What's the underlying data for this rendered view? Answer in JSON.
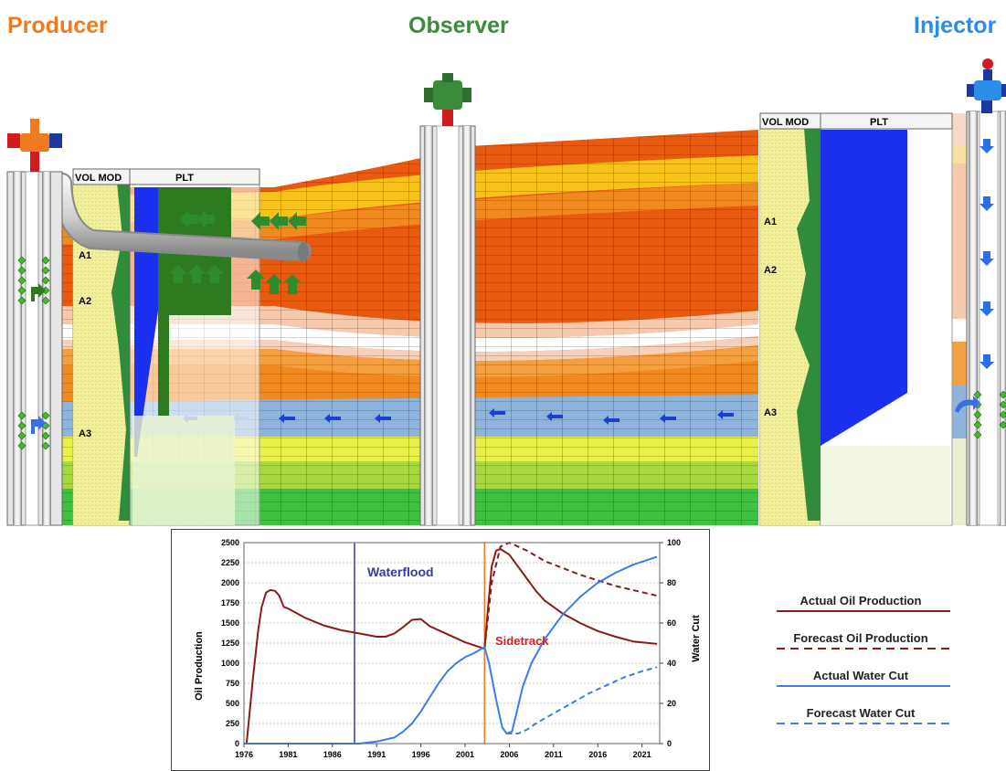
{
  "wells": {
    "producer": "Producer",
    "observer": "Observer",
    "injector": "Injector"
  },
  "colors": {
    "producer": "#f07a1e",
    "observer": "#3a8c3a",
    "injector": "#2a8ee8",
    "oil": "#8b1a1a",
    "water": "#3a7ee8",
    "waterflood_line": "#3a3aa0",
    "sidetrack_line": "#f07a1e"
  },
  "panels": {
    "producer": {
      "vol_mod": "VOL MOD",
      "plt": "PLT",
      "zones": [
        "A1",
        "A2",
        "A3"
      ]
    },
    "injector": {
      "vol_mod": "VOL MOD",
      "plt": "PLT",
      "zones": [
        "A1",
        "A2",
        "A3"
      ]
    }
  },
  "chart_data": {
    "type": "line",
    "ylabel": "Oil Production",
    "y2label": "Water Cut",
    "x_ticks": [
      "1976",
      "1981",
      "1986",
      "1991",
      "1996",
      "2001",
      "2006",
      "2011",
      "2016",
      "2021"
    ],
    "xlim": [
      1976,
      2023
    ],
    "y_ticks": [
      "0",
      "250",
      "500",
      "750",
      "1000",
      "1250",
      "1500",
      "1750",
      "2000",
      "2250",
      "2500"
    ],
    "ylim": [
      0,
      2500
    ],
    "y2_ticks": [
      "0",
      "20",
      "40",
      "60",
      "80",
      "100"
    ],
    "y2lim": [
      0,
      100
    ],
    "grid": true,
    "annotations": {
      "waterflood": "Waterflood",
      "sidetrack": "Sidetrack"
    },
    "events": {
      "waterflood": 1988.5,
      "sidetrack": 2003.2
    },
    "series": [
      {
        "name": "Actual Oil Production",
        "axis": "left",
        "style": "solid",
        "x": [
          1976.3,
          1977,
          1977.6,
          1978,
          1978.5,
          1979,
          1979.5,
          1980,
          1980.5,
          1981,
          1983,
          1985,
          1987,
          1989,
          1991,
          1992,
          1993,
          1994,
          1995,
          1996,
          1997,
          1999,
          2001,
          2003.2,
          2003.6,
          2004,
          2004.5,
          2005,
          2006,
          2007,
          2008,
          2009,
          2010,
          2012,
          2014,
          2016,
          2018,
          2020,
          2022.7
        ],
        "y": [
          0,
          800,
          1400,
          1700,
          1880,
          1910,
          1900,
          1840,
          1700,
          1680,
          1560,
          1470,
          1410,
          1370,
          1330,
          1330,
          1370,
          1450,
          1540,
          1550,
          1460,
          1360,
          1260,
          1180,
          1700,
          2200,
          2400,
          2420,
          2350,
          2200,
          2050,
          1900,
          1780,
          1620,
          1500,
          1400,
          1330,
          1270,
          1240
        ]
      },
      {
        "name": "Forecast Oil Production",
        "axis": "left",
        "style": "dashed",
        "x": [
          2003.2,
          2004,
          2005,
          2006,
          2008,
          2010,
          2014,
          2018,
          2022.7
        ],
        "y": [
          1180,
          2000,
          2450,
          2500,
          2400,
          2270,
          2100,
          1960,
          1840
        ]
      },
      {
        "name": "Actual Water Cut",
        "axis": "right",
        "style": "solid",
        "x": [
          1976,
          1989,
          1991,
          1993,
          1994,
          1995,
          1996,
          1997,
          1998,
          1999,
          2000,
          2001,
          2002,
          2003.2,
          2003.7,
          2004.5,
          2005.2,
          2005.7,
          2006.3,
          2006.8,
          2007.5,
          2008.5,
          2010,
          2012,
          2014,
          2016,
          2018,
          2020,
          2022.7
        ],
        "y": [
          0,
          0,
          1,
          3,
          6,
          10,
          16,
          23,
          30,
          36,
          40,
          43,
          45,
          48,
          40,
          22,
          8,
          5,
          6,
          15,
          28,
          40,
          52,
          64,
          73,
          80,
          85,
          89,
          93
        ]
      },
      {
        "name": "Forecast Water Cut",
        "axis": "right",
        "style": "dashed",
        "x": [
          2005.7,
          2007,
          2008,
          2009,
          2011,
          2013,
          2015,
          2017,
          2019,
          2021,
          2022.7
        ],
        "y": [
          5,
          5,
          7,
          10,
          15,
          20,
          25,
          29,
          33,
          36,
          38
        ]
      }
    ]
  },
  "legend": [
    {
      "label": "Actual Oil Production",
      "color": "#8b1a1a",
      "style": "solid"
    },
    {
      "label": "Forecast Oil Production",
      "color": "#8b1a1a",
      "style": "dashed"
    },
    {
      "label": "Actual Water Cut",
      "color": "#3a7ee8",
      "style": "solid"
    },
    {
      "label": "Forecast Water Cut",
      "color": "#3a7ee8",
      "style": "dashed"
    }
  ]
}
